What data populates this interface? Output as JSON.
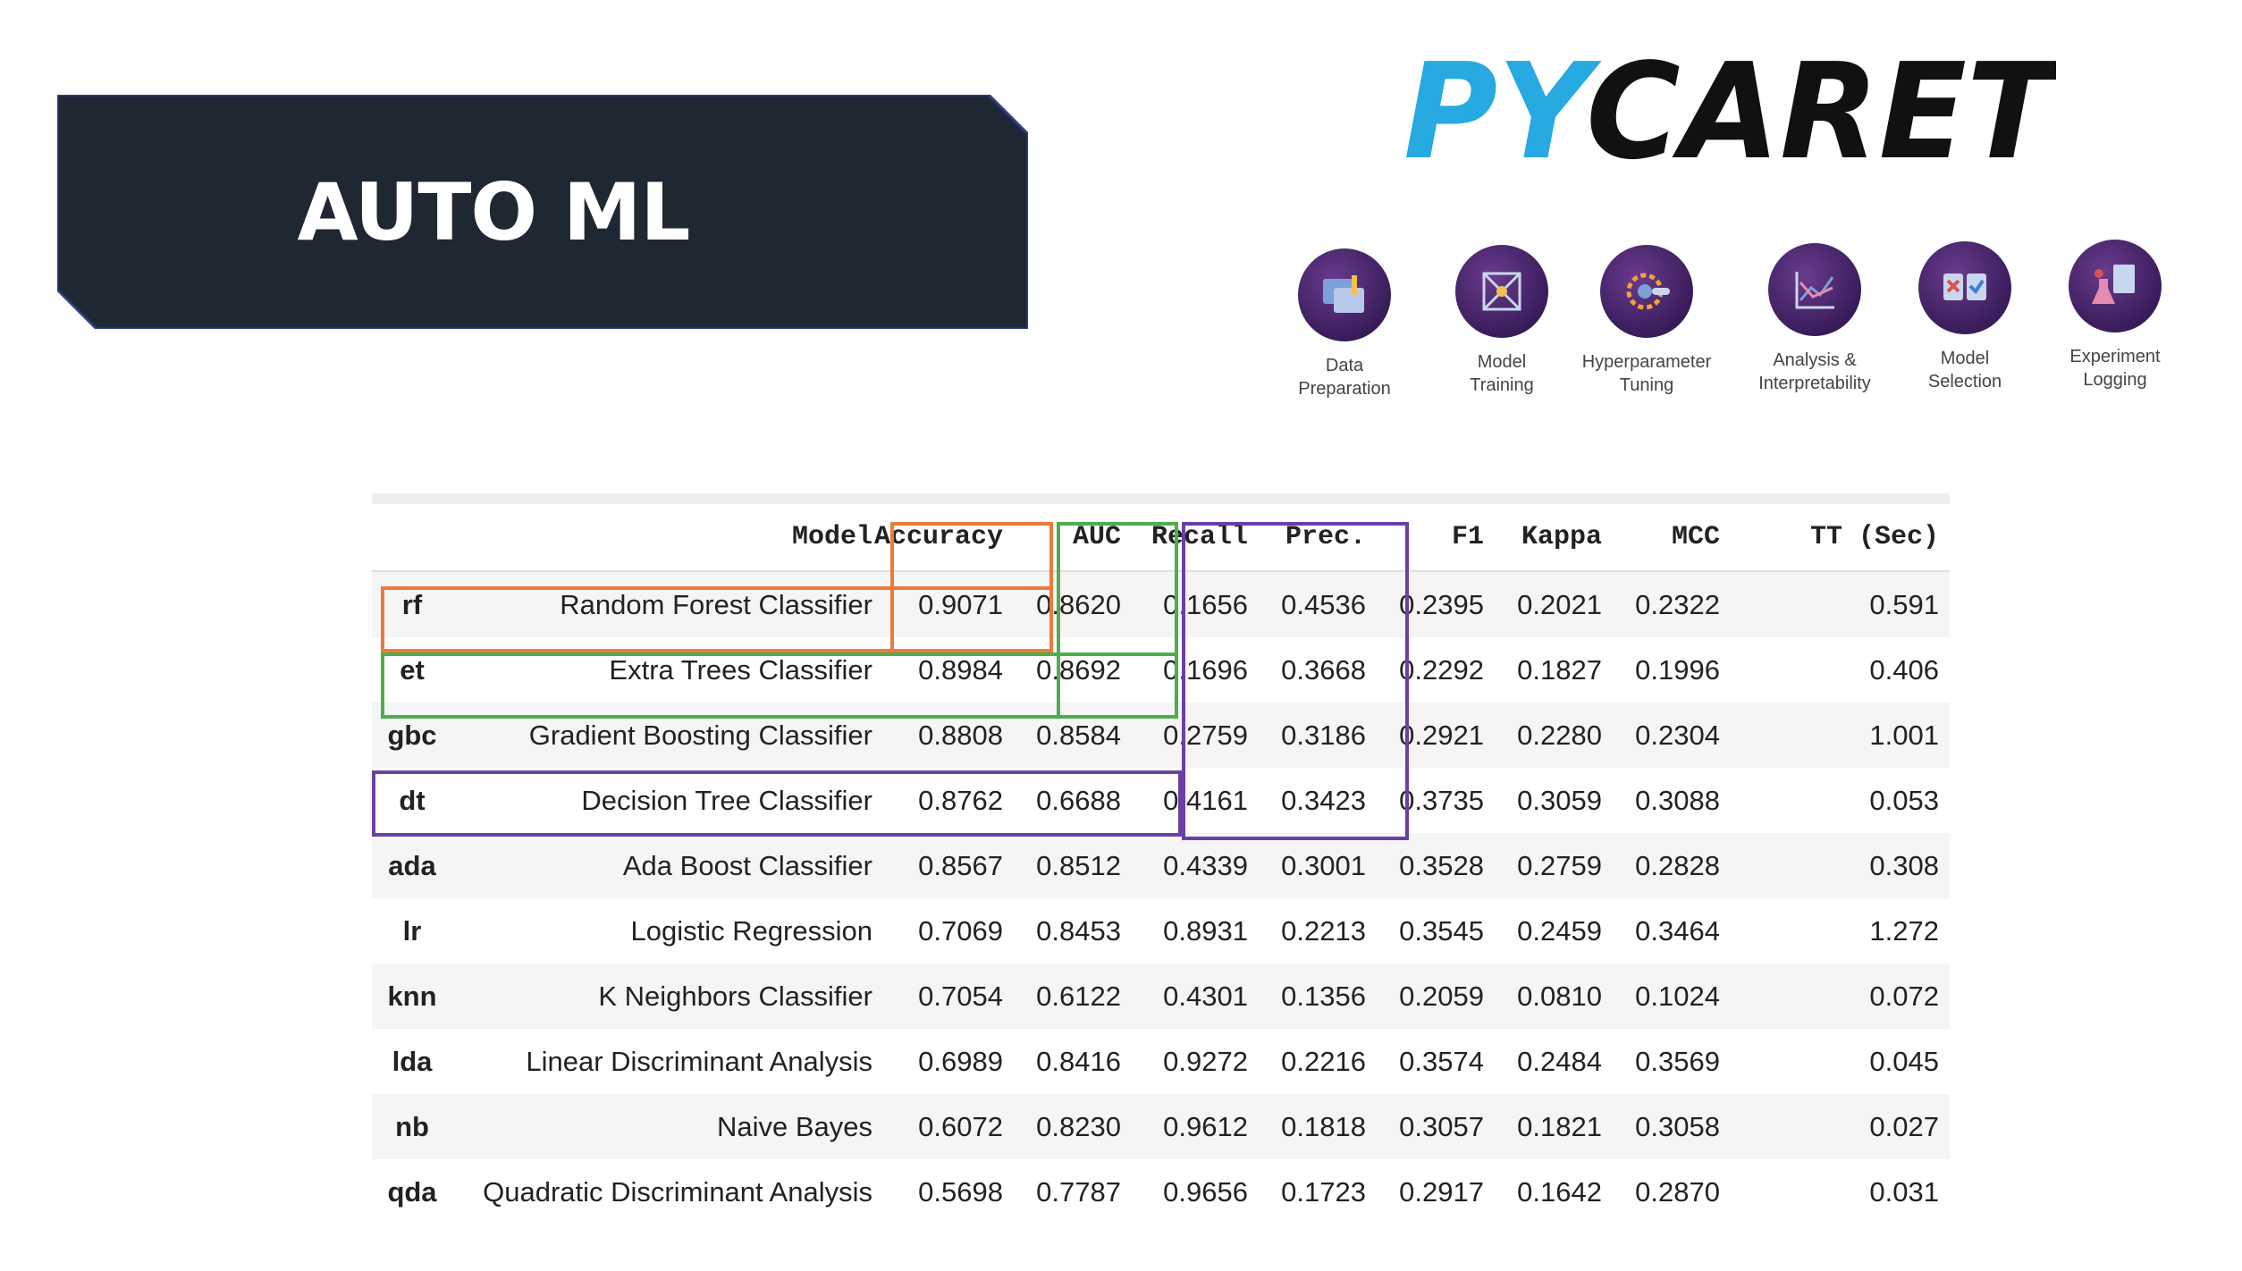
{
  "title": "AUTO ML",
  "logo": {
    "text": "PYCARET"
  },
  "colors": {
    "banner": "#1f2733",
    "logo_blue": "#27a9e1",
    "logo_black": "#111111",
    "orange": "#ec7a3a",
    "green": "#4cae4f",
    "purple": "#6c3fa6"
  },
  "features": [
    {
      "label": "Data\nPreparation",
      "icon": "data-preparation-icon"
    },
    {
      "label": "Model\nTraining",
      "icon": "model-training-icon"
    },
    {
      "label": "Hyperparameter\nTuning",
      "icon": "hyperparameter-tuning-icon"
    },
    {
      "label": "Analysis &\nInterpretability",
      "icon": "analysis-icon"
    },
    {
      "label": "Model\nSelection",
      "icon": "model-selection-icon"
    },
    {
      "label": "Experiment\nLogging",
      "icon": "experiment-logging-icon"
    }
  ],
  "table": {
    "headers": [
      "Model",
      "Accuracy",
      "AUC",
      "Recall",
      "Prec.",
      "F1",
      "Kappa",
      "MCC",
      "TT (Sec)"
    ],
    "rows": [
      [
        "rf",
        "Random Forest Classifier",
        "0.9071",
        "0.8620",
        "0.1656",
        "0.4536",
        "0.2395",
        "0.2021",
        "0.2322",
        "0.591"
      ],
      [
        "et",
        "Extra Trees Classifier",
        "0.8984",
        "0.8692",
        "0.1696",
        "0.3668",
        "0.2292",
        "0.1827",
        "0.1996",
        "0.406"
      ],
      [
        "gbc",
        "Gradient Boosting Classifier",
        "0.8808",
        "0.8584",
        "0.2759",
        "0.3186",
        "0.2921",
        "0.2280",
        "0.2304",
        "1.001"
      ],
      [
        "dt",
        "Decision Tree Classifier",
        "0.8762",
        "0.6688",
        "0.4161",
        "0.3423",
        "0.3735",
        "0.3059",
        "0.3088",
        "0.053"
      ],
      [
        "ada",
        "Ada Boost Classifier",
        "0.8567",
        "0.8512",
        "0.4339",
        "0.3001",
        "0.3528",
        "0.2759",
        "0.2828",
        "0.308"
      ],
      [
        "lr",
        "Logistic Regression",
        "0.7069",
        "0.8453",
        "0.8931",
        "0.2213",
        "0.3545",
        "0.2459",
        "0.3464",
        "1.272"
      ],
      [
        "knn",
        "K Neighbors Classifier",
        "0.7054",
        "0.6122",
        "0.4301",
        "0.1356",
        "0.2059",
        "0.0810",
        "0.1024",
        "0.072"
      ],
      [
        "lda",
        "Linear Discriminant Analysis",
        "0.6989",
        "0.8416",
        "0.9272",
        "0.2216",
        "0.3574",
        "0.2484",
        "0.3569",
        "0.045"
      ],
      [
        "nb",
        "Naive Bayes",
        "0.6072",
        "0.8230",
        "0.9612",
        "0.1818",
        "0.3057",
        "0.1821",
        "0.3058",
        "0.027"
      ],
      [
        "qda",
        "Quadratic Discriminant Analysis",
        "0.5698",
        "0.7787",
        "0.9656",
        "0.1723",
        "0.2917",
        "0.1642",
        "0.2870",
        "0.031"
      ]
    ]
  }
}
